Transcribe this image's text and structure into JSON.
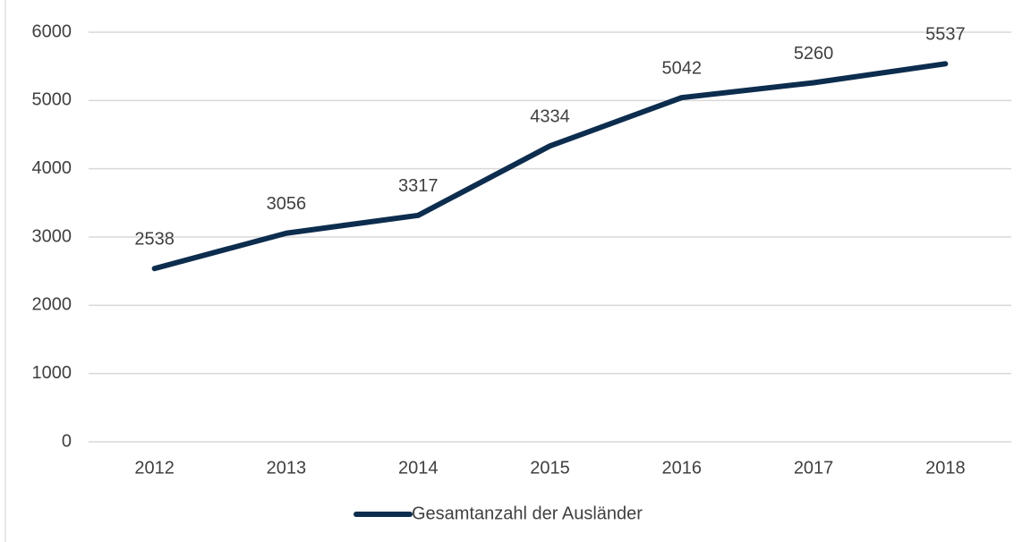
{
  "chart_data": {
    "type": "line",
    "categories": [
      "2012",
      "2013",
      "2014",
      "2015",
      "2016",
      "2017",
      "2018"
    ],
    "series": [
      {
        "name": "Gesamtanzahl der Ausländer",
        "color": "#0d2d4e",
        "values": [
          2538,
          3056,
          3317,
          4334,
          5042,
          5260,
          5537
        ]
      }
    ],
    "ylim": [
      0,
      6000
    ],
    "yticks": [
      0,
      1000,
      2000,
      3000,
      4000,
      5000,
      6000
    ],
    "grid": true,
    "data_labels": true,
    "legend": "bottom"
  }
}
